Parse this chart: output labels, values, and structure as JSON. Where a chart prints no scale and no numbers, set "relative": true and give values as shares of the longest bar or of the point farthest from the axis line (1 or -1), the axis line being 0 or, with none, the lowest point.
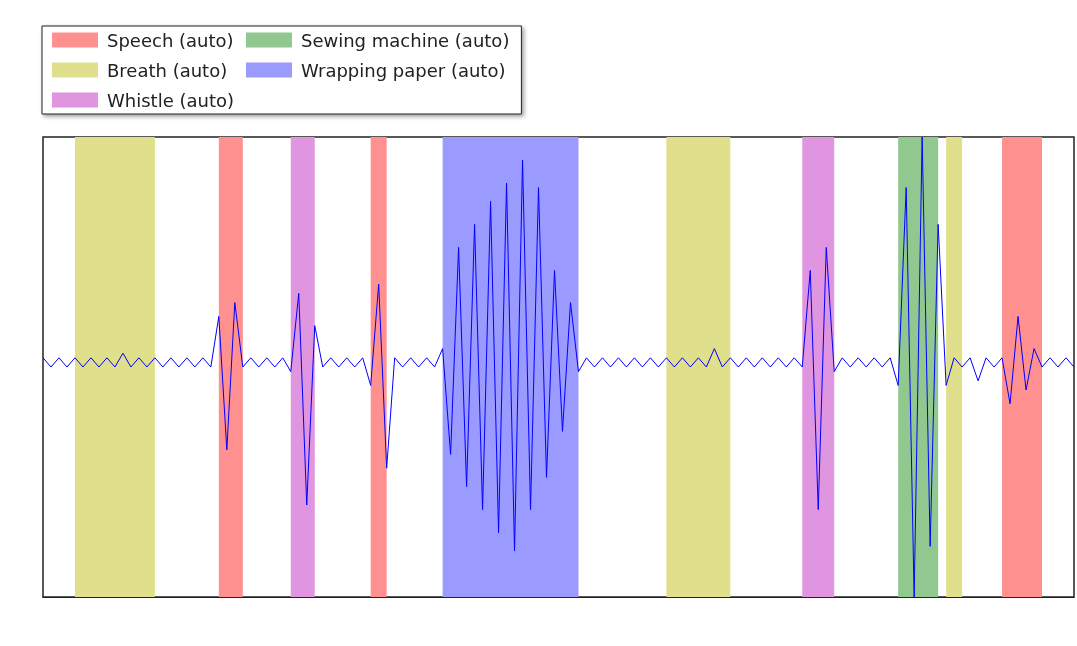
{
  "chart_data": {
    "type": "line",
    "relative": true,
    "legend": "top left",
    "grid": false,
    "marker": "none",
    "line_style": "solid",
    "categories": [
      null,
      null,
      null,
      null,
      null,
      null,
      null,
      null,
      null,
      null,
      null,
      null,
      null,
      null,
      null,
      null,
      null,
      null,
      null,
      null,
      null,
      null,
      null,
      null,
      null,
      null,
      null,
      null,
      null,
      null,
      null,
      null,
      null,
      null,
      null,
      null,
      null,
      null,
      null,
      null,
      null,
      null,
      null,
      null,
      null,
      null,
      null,
      null,
      null,
      null,
      null,
      null,
      null,
      null,
      null,
      null,
      null,
      null,
      null,
      null,
      null,
      null,
      null,
      null,
      null,
      null,
      null,
      null,
      null,
      null,
      null,
      null,
      null,
      null,
      null,
      null,
      null,
      null,
      null,
      null,
      null,
      null,
      null,
      null,
      null,
      null,
      null,
      null,
      null,
      null,
      null,
      null,
      null,
      null,
      null,
      null,
      null,
      null,
      null,
      null,
      null,
      null,
      null,
      null,
      null,
      null,
      null,
      null,
      null,
      null,
      null,
      null,
      null,
      null,
      null,
      null,
      null,
      null,
      null,
      null,
      null,
      null,
      null,
      null,
      null,
      null,
      null,
      null,
      null,
      null
    ],
    "series": [
      {
        "name": "Speech (auto)",
        "type": "area",
        "color": "#ff9090",
        "values": [
          null,
          null,
          null,
          null,
          null,
          null,
          null,
          null,
          null,
          null,
          null,
          null,
          null,
          null,
          null,
          null,
          null,
          null,
          null,
          null,
          null,
          null,
          1,
          1,
          1,
          1,
          null,
          null,
          null,
          null,
          null,
          null,
          null,
          null,
          null,
          null,
          null,
          null,
          null,
          null,
          null,
          1,
          1,
          1,
          null,
          null,
          null,
          null,
          null,
          null,
          null,
          null,
          null,
          null,
          null,
          null,
          null,
          null,
          null,
          null,
          null,
          null,
          null,
          null,
          null,
          null,
          null,
          null,
          null,
          null,
          null,
          null,
          null,
          null,
          null,
          null,
          null,
          null,
          null,
          null,
          null,
          null,
          null,
          null,
          null,
          null,
          null,
          null,
          null,
          null,
          null,
          null,
          null,
          null,
          null,
          null,
          null,
          null,
          null,
          null,
          null,
          null,
          null,
          null,
          null,
          null,
          null,
          null,
          null,
          null,
          null,
          null,
          null,
          null,
          null,
          null,
          null,
          null,
          null,
          null,
          1,
          1,
          1,
          1,
          1,
          1,
          null,
          null,
          null,
          null
        ]
      },
      {
        "name": "Breath (auto)",
        "type": "area",
        "color": "#e0e08c",
        "values": [
          null,
          null,
          null,
          null,
          1,
          1,
          1,
          1,
          1,
          1,
          1,
          1,
          1,
          1,
          1,
          null,
          null,
          null,
          null,
          null,
          null,
          null,
          null,
          null,
          null,
          null,
          null,
          null,
          null,
          null,
          null,
          null,
          null,
          null,
          null,
          null,
          null,
          null,
          null,
          null,
          null,
          null,
          null,
          null,
          null,
          null,
          null,
          null,
          null,
          null,
          null,
          null,
          null,
          null,
          null,
          null,
          null,
          null,
          null,
          null,
          null,
          null,
          null,
          null,
          null,
          null,
          null,
          null,
          null,
          null,
          null,
          null,
          null,
          null,
          null,
          null,
          null,
          null,
          1,
          1,
          1,
          1,
          1,
          1,
          1,
          1,
          1,
          null,
          null,
          null,
          null,
          null,
          null,
          null,
          null,
          null,
          null,
          null,
          null,
          null,
          null,
          null,
          null,
          null,
          null,
          null,
          null,
          null,
          null,
          null,
          null,
          null,
          null,
          1,
          1,
          1,
          null,
          null,
          null,
          null,
          null,
          null,
          null,
          null,
          null,
          null,
          null,
          null,
          null,
          null
        ]
      },
      {
        "name": "Whistle (auto)",
        "type": "area",
        "color": "#df95df",
        "values": [
          null,
          null,
          null,
          null,
          null,
          null,
          null,
          null,
          null,
          null,
          null,
          null,
          null,
          null,
          null,
          null,
          null,
          null,
          null,
          null,
          null,
          null,
          null,
          null,
          null,
          null,
          null,
          null,
          null,
          null,
          null,
          1,
          1,
          1,
          1,
          null,
          null,
          null,
          null,
          null,
          null,
          null,
          null,
          null,
          null,
          null,
          null,
          null,
          null,
          null,
          null,
          null,
          null,
          null,
          null,
          null,
          null,
          null,
          null,
          null,
          null,
          null,
          null,
          null,
          null,
          null,
          null,
          null,
          null,
          null,
          null,
          null,
          null,
          null,
          null,
          null,
          null,
          null,
          null,
          null,
          null,
          null,
          null,
          null,
          null,
          null,
          null,
          null,
          null,
          null,
          null,
          null,
          null,
          null,
          null,
          1,
          1,
          1,
          1,
          1,
          null,
          null,
          null,
          null,
          null,
          null,
          null,
          null,
          null,
          null,
          null,
          null,
          null,
          null,
          null,
          null,
          null,
          null,
          null,
          null,
          null,
          null,
          null,
          null,
          null,
          null,
          null,
          null,
          null,
          null
        ]
      },
      {
        "name": "Sewing machine (auto)",
        "type": "area",
        "color": "#90c890",
        "values": [
          null,
          null,
          null,
          null,
          null,
          null,
          null,
          null,
          null,
          null,
          null,
          null,
          null,
          null,
          null,
          null,
          null,
          null,
          null,
          null,
          null,
          null,
          null,
          null,
          null,
          null,
          null,
          null,
          null,
          null,
          null,
          null,
          null,
          null,
          null,
          null,
          null,
          null,
          null,
          null,
          null,
          null,
          null,
          null,
          null,
          null,
          null,
          null,
          null,
          null,
          null,
          null,
          null,
          null,
          null,
          null,
          null,
          null,
          null,
          null,
          null,
          null,
          null,
          null,
          null,
          null,
          null,
          null,
          null,
          null,
          null,
          null,
          null,
          null,
          null,
          null,
          null,
          null,
          null,
          null,
          null,
          null,
          null,
          null,
          null,
          null,
          null,
          null,
          null,
          null,
          null,
          null,
          null,
          null,
          null,
          null,
          null,
          null,
          null,
          null,
          null,
          null,
          null,
          null,
          null,
          null,
          null,
          1,
          1,
          1,
          1,
          1,
          1,
          null,
          null,
          null,
          null,
          null,
          null,
          null,
          null,
          null,
          null,
          null,
          null,
          null,
          null,
          null,
          null,
          null
        ]
      },
      {
        "name": "Wrapping paper (auto)",
        "type": "area",
        "color": "#9a9aff",
        "values": [
          null,
          null,
          null,
          null,
          null,
          null,
          null,
          null,
          null,
          null,
          null,
          null,
          null,
          null,
          null,
          null,
          null,
          null,
          null,
          null,
          null,
          null,
          null,
          null,
          null,
          null,
          null,
          null,
          null,
          null,
          null,
          null,
          null,
          null,
          null,
          null,
          null,
          null,
          null,
          null,
          null,
          null,
          null,
          null,
          null,
          null,
          null,
          null,
          null,
          null,
          1,
          1,
          1,
          1,
          1,
          1,
          1,
          1,
          1,
          1,
          1,
          1,
          1,
          1,
          1,
          1,
          1,
          1,
          null,
          null,
          null,
          null,
          null,
          null,
          null,
          null,
          null,
          null,
          null,
          null,
          null,
          null,
          null,
          null,
          null,
          null,
          null,
          null,
          null,
          null,
          null,
          null,
          null,
          null,
          null,
          null,
          null,
          null,
          null,
          null,
          null,
          null,
          null,
          null,
          null,
          null,
          null,
          null,
          null,
          null,
          null,
          null,
          null,
          null,
          null,
          null,
          null,
          null,
          null,
          null,
          null,
          null,
          null,
          null,
          null,
          null,
          null,
          null,
          null,
          null
        ]
      },
      {
        "color": "#0000ff",
        "values": [
          0.52,
          0.5,
          0.52,
          0.5,
          0.52,
          0.5,
          0.52,
          0.5,
          0.52,
          0.5,
          0.53,
          0.5,
          0.52,
          0.5,
          0.52,
          0.5,
          0.52,
          0.5,
          0.52,
          0.5,
          0.52,
          0.5,
          0.61,
          0.32,
          0.64,
          0.5,
          0.52,
          0.5,
          0.52,
          0.5,
          0.52,
          0.49,
          0.66,
          0.2,
          0.59,
          0.5,
          0.52,
          0.5,
          0.52,
          0.5,
          0.52,
          0.46,
          0.68,
          0.28,
          0.52,
          0.5,
          0.52,
          0.5,
          0.52,
          0.5,
          0.54,
          0.31,
          0.76,
          0.24,
          0.81,
          0.19,
          0.86,
          0.14,
          0.9,
          0.1,
          0.95,
          0.19,
          0.89,
          0.26,
          0.71,
          0.36,
          0.64,
          0.49,
          0.52,
          0.5,
          0.52,
          0.5,
          0.52,
          0.5,
          0.52,
          0.5,
          0.52,
          0.5,
          0.52,
          0.5,
          0.52,
          0.5,
          0.52,
          0.5,
          0.54,
          0.5,
          0.52,
          0.5,
          0.52,
          0.5,
          0.52,
          0.5,
          0.52,
          0.5,
          0.52,
          0.5,
          0.71,
          0.19,
          0.76,
          0.49,
          0.52,
          0.5,
          0.52,
          0.5,
          0.52,
          0.5,
          0.52,
          0.46,
          0.89,
          0.0,
          1.0,
          0.11,
          0.81,
          0.46,
          0.52,
          0.5,
          0.52,
          0.47,
          0.52,
          0.5,
          0.52,
          0.42,
          0.61,
          0.45,
          0.54,
          0.5,
          0.52,
          0.5,
          0.52,
          0.5
        ]
      }
    ]
  }
}
